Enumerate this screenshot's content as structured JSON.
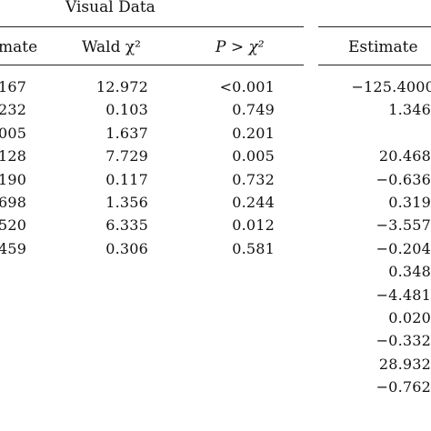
{
  "group_header": "Visual Data",
  "columns": {
    "estimate_partial": "mate",
    "wald": "Wald χ²",
    "p": "P > χ²",
    "estimate_right": "Estimate"
  },
  "left_rows": [
    {
      "estimate": "167",
      "wald": "12.972",
      "p": "<0.001"
    },
    {
      "estimate": "232",
      "wald": "0.103",
      "p": "0.749"
    },
    {
      "estimate": "005",
      "wald": "1.637",
      "p": "0.201"
    },
    {
      "estimate": "128",
      "wald": "7.729",
      "p": "0.005"
    },
    {
      "estimate": "190",
      "wald": "0.117",
      "p": "0.732"
    },
    {
      "estimate": "698",
      "wald": "1.356",
      "p": "0.244"
    },
    {
      "estimate": "520",
      "wald": "6.335",
      "p": "0.012"
    },
    {
      "estimate": "459",
      "wald": "0.306",
      "p": "0.581"
    }
  ],
  "right_estimates": [
    "−125.4000",
    "1.346",
    "",
    "20.468",
    "−0.636",
    "0.319",
    "−3.557",
    "−0.204",
    "0.348",
    "−4.481",
    "0.020",
    "−0.332",
    "28.932",
    "−0.762"
  ]
}
